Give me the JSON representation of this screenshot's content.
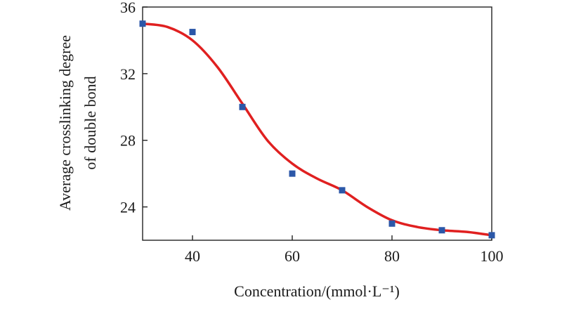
{
  "chart_data": {
    "type": "scatter",
    "title": "",
    "xlabel": "Concentration/(mmol·L⁻¹)",
    "ylabel_lines": [
      "Average crosslinking degree",
      "of double bond"
    ],
    "xlim": [
      30,
      100
    ],
    "ylim": [
      22,
      36
    ],
    "xticks": [
      40,
      60,
      80,
      100
    ],
    "yticks": [
      24,
      28,
      32,
      36
    ],
    "grid": false,
    "series": [
      {
        "kind": "points",
        "marker": "square",
        "color": "#2b57a8",
        "x": [
          30,
          40,
          50,
          60,
          70,
          80,
          90,
          100
        ],
        "y": [
          35.0,
          34.5,
          30.0,
          26.0,
          25.0,
          23.0,
          22.6,
          22.3
        ]
      },
      {
        "kind": "fit-curve",
        "color": "#e02020",
        "x": [
          30,
          35,
          40,
          45,
          50,
          55,
          60,
          65,
          70,
          75,
          80,
          85,
          90,
          95,
          100
        ],
        "y": [
          35.0,
          34.8,
          34.0,
          32.4,
          30.2,
          28.0,
          26.6,
          25.7,
          25.0,
          24.0,
          23.2,
          22.8,
          22.6,
          22.5,
          22.3
        ]
      }
    ]
  }
}
